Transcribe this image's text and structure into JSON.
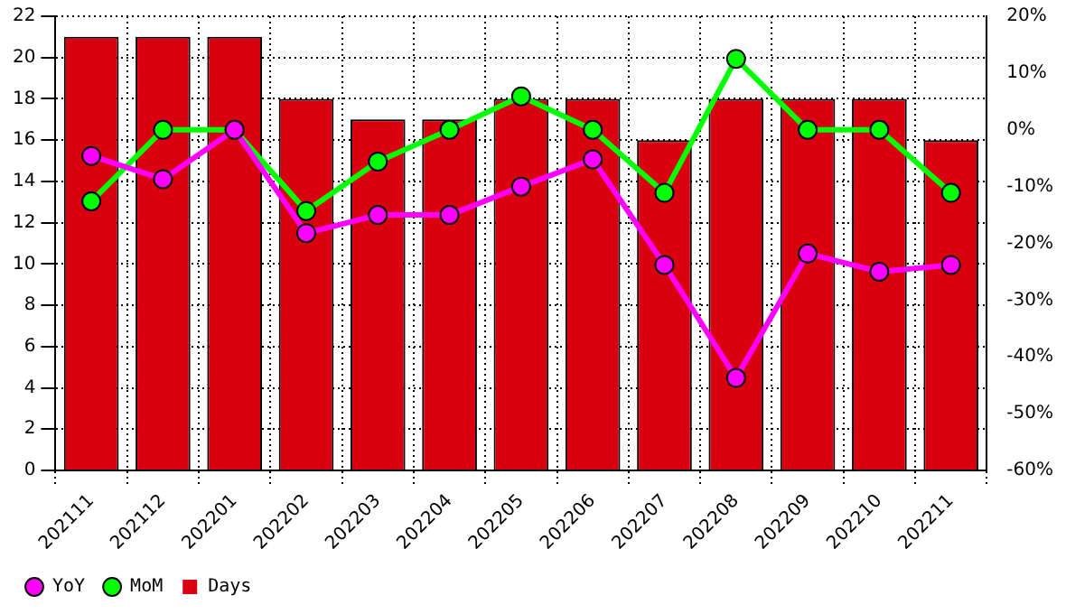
{
  "chart_data": {
    "type": "bar",
    "categories": [
      "202111",
      "202112",
      "202201",
      "202202",
      "202203",
      "202204",
      "202205",
      "202206",
      "202207",
      "202208",
      "202209",
      "202210",
      "202211"
    ],
    "series": [
      {
        "name": "YoY",
        "type": "line",
        "axis": "y2",
        "color": "#ff00ff",
        "values": [
          -4.6,
          -8.7,
          0,
          -18.2,
          -15,
          -15,
          -10,
          -5.2,
          -23.8,
          -43.7,
          -21.8,
          -25,
          -23.8
        ]
      },
      {
        "name": "MoM",
        "type": "line",
        "axis": "y2",
        "color": "#00ff00",
        "values": [
          -12.6,
          0,
          0,
          -14.3,
          -5.6,
          0,
          5.9,
          0,
          -11.1,
          12.5,
          0,
          0,
          -11.1
        ]
      },
      {
        "name": "Days",
        "color": "#d9000f",
        "values": [
          21,
          21,
          21,
          18,
          17,
          17,
          18,
          18,
          16,
          18,
          18,
          18,
          16
        ]
      }
    ],
    "ylim": [
      0,
      22
    ],
    "yticks": [
      0,
      2,
      4,
      6,
      8,
      10,
      12,
      14,
      16,
      18,
      20,
      22
    ],
    "y2lim": [
      -60,
      20
    ],
    "y2ticks": [
      {
        "value": -60,
        "label": "-60%"
      },
      {
        "value": -50,
        "label": "-50%"
      },
      {
        "value": -40,
        "label": "-40%"
      },
      {
        "value": -30,
        "label": "-30%"
      },
      {
        "value": -20,
        "label": "-20%"
      },
      {
        "value": -10,
        "label": "-10%"
      },
      {
        "value": 0,
        "label": "0%"
      },
      {
        "value": 10,
        "label": "10%"
      },
      {
        "value": 20,
        "label": "20%"
      }
    ],
    "grid": true,
    "legend": "bottom",
    "marker": "circle",
    "line_style": "solid"
  }
}
